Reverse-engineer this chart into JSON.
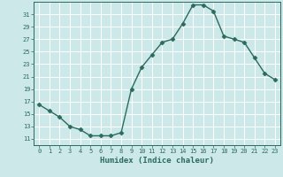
{
  "x": [
    0,
    1,
    2,
    3,
    4,
    5,
    6,
    7,
    8,
    9,
    10,
    11,
    12,
    13,
    14,
    15,
    16,
    17,
    18,
    19,
    20,
    21,
    22,
    23
  ],
  "y": [
    16.5,
    15.5,
    14.5,
    13.0,
    12.5,
    11.5,
    11.5,
    11.5,
    12.0,
    19.0,
    22.5,
    24.5,
    26.5,
    27.0,
    29.5,
    32.5,
    32.5,
    31.5,
    27.5,
    27.0,
    26.5,
    24.0,
    21.5,
    20.5
  ],
  "xlim": [
    -0.5,
    23.5
  ],
  "ylim": [
    10,
    33
  ],
  "yticks": [
    11,
    13,
    15,
    17,
    19,
    21,
    23,
    25,
    27,
    29,
    31
  ],
  "xticks": [
    0,
    1,
    2,
    3,
    4,
    5,
    6,
    7,
    8,
    9,
    10,
    11,
    12,
    13,
    14,
    15,
    16,
    17,
    18,
    19,
    20,
    21,
    22,
    23
  ],
  "xlabel": "Humidex (Indice chaleur)",
  "line_color": "#2a6b5e",
  "marker": "D",
  "marker_size": 2.5,
  "bg_color": "#cce8e8",
  "grid_color": "#ffffff",
  "grid_minor_color": "#ddf2f2"
}
